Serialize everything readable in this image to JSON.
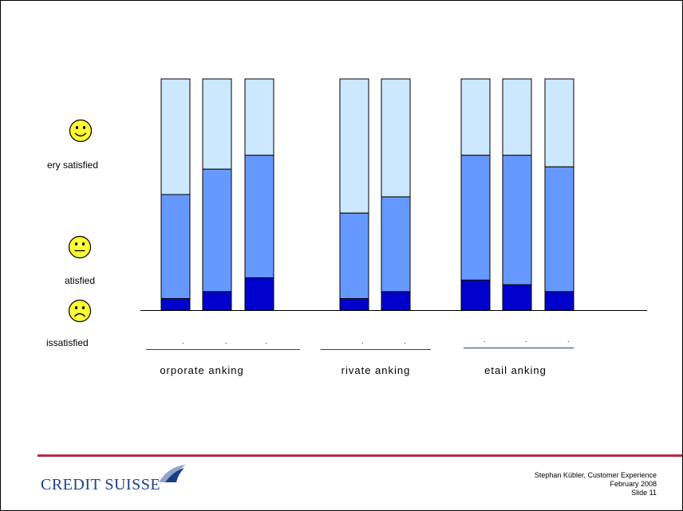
{
  "scale": {
    "very_satisfied": "ery satisfied",
    "satisfied": "atisfied",
    "dissatisfied": "issatisfied"
  },
  "ticks": [
    ".",
    ".",
    ".",
    ".",
    ".",
    ".",
    ".",
    "."
  ],
  "footer": {
    "logo_text": "CREDIT SUISSE",
    "author": "Stephan Kübler, Customer Experience",
    "date": "February 2008",
    "slide": "Slide 11"
  },
  "colors": {
    "light": "#cce8ff",
    "mid": "#6699ff",
    "dark": "#0000cc",
    "footer_bar": "#b22a4a",
    "logo": "#1a3f8a"
  },
  "chart_data": {
    "type": "bar",
    "stacked": true,
    "groups": [
      "orporate anking",
      "rivate anking",
      "etail anking"
    ],
    "bars_per_group": [
      3,
      2,
      3
    ],
    "ylim": [
      0,
      100
    ],
    "series": [
      {
        "values": [
          5,
          8,
          14,
          5,
          8,
          13,
          11,
          8
        ]
      },
      {
        "values": [
          45,
          53,
          53,
          37,
          41,
          54,
          56,
          54
        ]
      },
      {
        "values": [
          50,
          39,
          33,
          58,
          51,
          33,
          33,
          38
        ]
      }
    ]
  }
}
